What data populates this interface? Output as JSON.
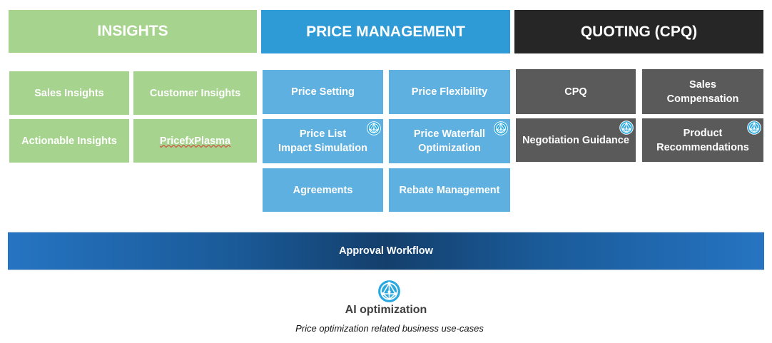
{
  "columns": [
    {
      "title": "INSIGHTS",
      "color": "#a6d38d"
    },
    {
      "title": "PRICE MANAGEMENT",
      "color": "#2e9bd6"
    },
    {
      "title": "QUOTING (CPQ)",
      "color": "#262626"
    }
  ],
  "insights": [
    "Sales Insights",
    "Customer Insights",
    "Actionable Insights",
    "PricefxPlasma"
  ],
  "price_management": [
    "Price Setting",
    "Price Flexibility",
    "Price List\nImpact Simulation",
    "Price Waterfall\nOptimization",
    "Agreements",
    "Rebate Management"
  ],
  "quoting": [
    "CPQ",
    "Sales\nCompensation",
    "Negotiation Guidance",
    "Product\nRecommendations"
  ],
  "workflow": "Approval Workflow",
  "legend": {
    "icon": "ai-network-icon",
    "label": "AI optimization",
    "caption": "Price optimization related business use-cases"
  }
}
